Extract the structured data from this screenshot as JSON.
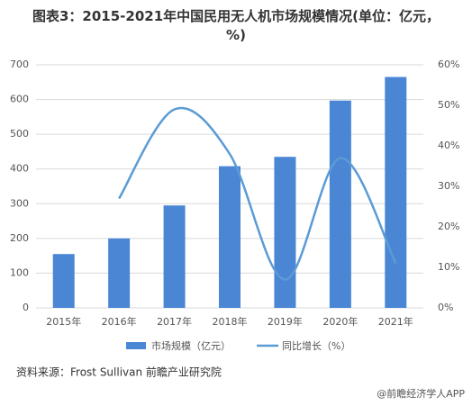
{
  "chart_data": {
    "type": "bar",
    "title": "图表3：2015-2021年中国民用无人机市场规模情况(单位：亿元，%)",
    "categories": [
      "2015年",
      "2016年",
      "2017年",
      "2018年",
      "2019年",
      "2020年",
      "2021年"
    ],
    "series": [
      {
        "name": "市场规模（亿元）",
        "type": "bar",
        "color": "#4a86d4",
        "values": [
          155,
          200,
          295,
          408,
          435,
          597,
          665
        ]
      },
      {
        "name": "同比增长（%）",
        "type": "line",
        "axis": "y2",
        "color": "#5b9bd5",
        "values": [
          null,
          27,
          49,
          38,
          7,
          37,
          11
        ]
      }
    ],
    "ylim": [
      0,
      700
    ],
    "yticks": [
      0,
      100,
      200,
      300,
      400,
      500,
      600,
      700
    ],
    "y2lim": [
      0,
      60
    ],
    "y2ticks": [
      {
        "value": 0,
        "label": "0%"
      },
      {
        "value": 10,
        "label": "10%"
      },
      {
        "value": 20,
        "label": "20%"
      },
      {
        "value": 30,
        "label": "30%"
      },
      {
        "value": 40,
        "label": "40%"
      },
      {
        "value": 50,
        "label": "50%"
      },
      {
        "value": 60,
        "label": "60%"
      }
    ],
    "grid": true,
    "source": "资料来源：Frost Sullivan 前瞻产业研究院",
    "footer": "@前瞻经济学人APP"
  }
}
